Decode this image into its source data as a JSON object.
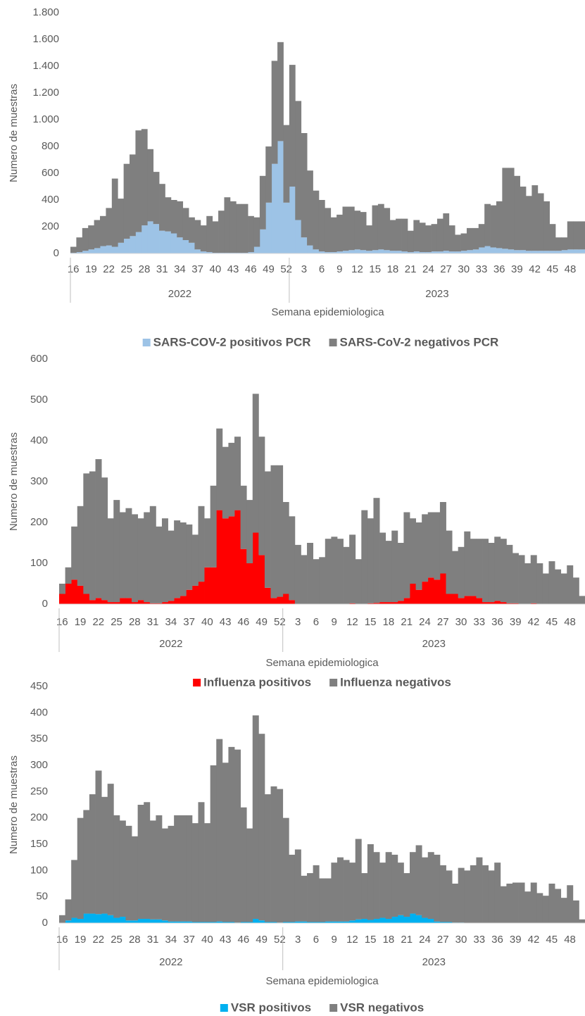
{
  "chart_data": [
    {
      "type": "bar",
      "stacked": true,
      "legend": "bottom",
      "y_label": "Numero de muestras",
      "x_label": "Semana epidemiologica",
      "groups": [
        "2022",
        "2023"
      ],
      "categories": [
        "16",
        null,
        null,
        "19",
        null,
        null,
        "22",
        null,
        null,
        "25",
        null,
        null,
        "28",
        null,
        null,
        "31",
        null,
        null,
        "34",
        null,
        null,
        "37",
        null,
        null,
        "40",
        null,
        null,
        "43",
        null,
        null,
        "46",
        null,
        null,
        "49",
        null,
        null,
        "52",
        null,
        null,
        "3",
        null,
        null,
        "6",
        null,
        null,
        "9",
        null,
        null,
        "12",
        null,
        null,
        "15",
        null,
        null,
        "18",
        null,
        null,
        "21",
        null,
        null,
        "24",
        null,
        null,
        "27",
        null,
        null,
        "30",
        null,
        null,
        "33",
        null,
        null,
        "36",
        null,
        null,
        "39",
        null,
        null,
        "42",
        null,
        null,
        "45",
        null,
        null,
        "48",
        null,
        null
      ],
      "ylim": [
        0,
        1800
      ],
      "yticks": [
        0,
        200,
        400,
        600,
        800,
        {
          "value": 1000,
          "label": "1.000"
        },
        {
          "value": 1200,
          "label": "1.200"
        },
        {
          "value": 1400,
          "label": "1.400"
        },
        {
          "value": 1600,
          "label": "1.600"
        },
        {
          "value": 1800,
          "label": "1.800"
        }
      ],
      "series": [
        {
          "name": "SARS-COV-2 positivos PCR",
          "color": "#9dc3e6",
          "values": [
            5,
            10,
            20,
            30,
            40,
            55,
            60,
            50,
            80,
            110,
            130,
            160,
            210,
            240,
            220,
            170,
            165,
            150,
            120,
            100,
            80,
            30,
            15,
            10,
            5,
            5,
            5,
            5,
            5,
            5,
            10,
            50,
            180,
            380,
            670,
            840,
            380,
            500,
            250,
            120,
            60,
            30,
            15,
            10,
            10,
            15,
            20,
            25,
            30,
            25,
            20,
            25,
            30,
            25,
            20,
            20,
            15,
            10,
            15,
            10,
            10,
            15,
            15,
            20,
            15,
            15,
            20,
            25,
            30,
            45,
            55,
            45,
            40,
            35,
            30,
            25,
            25,
            20,
            20,
            20,
            20,
            20,
            20,
            25,
            30,
            30,
            30
          ]
        },
        {
          "name": "SARS-CoV-2 negativos PCR",
          "color": "#7f7f7f",
          "values": [
            45,
            110,
            170,
            180,
            210,
            225,
            280,
            510,
            330,
            560,
            610,
            760,
            720,
            540,
            390,
            350,
            255,
            250,
            270,
            240,
            190,
            220,
            195,
            270,
            235,
            315,
            415,
            385,
            365,
            365,
            270,
            220,
            400,
            420,
            770,
            740,
            580,
            910,
            890,
            780,
            560,
            440,
            385,
            330,
            260,
            275,
            330,
            325,
            290,
            285,
            190,
            335,
            340,
            315,
            230,
            240,
            245,
            160,
            235,
            220,
            200,
            205,
            245,
            280,
            195,
            125,
            130,
            165,
            160,
            175,
            315,
            315,
            350,
            605,
            610,
            555,
            475,
            410,
            490,
            430,
            370,
            200,
            100,
            95,
            210,
            210,
            210
          ]
        }
      ]
    },
    {
      "type": "bar",
      "stacked": true,
      "legend": "bottom",
      "y_label": "Numero de muestras",
      "x_label": "Semana epidemiologica",
      "groups": [
        "2022",
        "2023"
      ],
      "categories": [
        "16",
        null,
        null,
        "19",
        null,
        null,
        "22",
        null,
        null,
        "25",
        null,
        null,
        "28",
        null,
        null,
        "31",
        null,
        null,
        "34",
        null,
        null,
        "37",
        null,
        null,
        "40",
        null,
        null,
        "43",
        null,
        null,
        "46",
        null,
        null,
        "49",
        null,
        null,
        "52",
        null,
        null,
        "3",
        null,
        null,
        "6",
        null,
        null,
        "9",
        null,
        null,
        "12",
        null,
        null,
        "15",
        null,
        null,
        "18",
        null,
        null,
        "21",
        null,
        null,
        "24",
        null,
        null,
        "27",
        null,
        null,
        "30",
        null,
        null,
        "33",
        null,
        null,
        "36",
        null,
        null,
        "39",
        null,
        null,
        "42",
        null,
        null,
        "45",
        null,
        null,
        "48",
        null,
        null
      ],
      "ylim": [
        0,
        600
      ],
      "yticks": [
        0,
        100,
        200,
        300,
        400,
        500,
        600
      ],
      "series": [
        {
          "name": "Influenza positivos",
          "color": "#ff0000",
          "values": [
            25,
            50,
            60,
            45,
            25,
            10,
            15,
            10,
            5,
            5,
            15,
            15,
            5,
            10,
            5,
            2,
            2,
            5,
            8,
            15,
            20,
            35,
            45,
            55,
            90,
            90,
            230,
            210,
            215,
            230,
            135,
            100,
            175,
            120,
            40,
            15,
            18,
            25,
            10,
            0,
            0,
            0,
            0,
            0,
            0,
            0,
            0,
            0,
            2,
            0,
            0,
            2,
            3,
            5,
            5,
            5,
            8,
            15,
            50,
            35,
            55,
            65,
            60,
            75,
            25,
            25,
            15,
            20,
            20,
            15,
            5,
            5,
            8,
            5,
            2,
            2,
            0,
            0,
            2,
            0,
            0,
            0,
            0,
            0,
            0,
            0,
            0
          ]
        },
        {
          "name": "Influenza negativos",
          "color": "#7f7f7f",
          "values": [
            25,
            40,
            130,
            195,
            295,
            315,
            340,
            300,
            205,
            250,
            210,
            220,
            215,
            200,
            220,
            238,
            188,
            205,
            172,
            190,
            180,
            160,
            125,
            185,
            120,
            200,
            200,
            175,
            180,
            180,
            155,
            155,
            340,
            290,
            285,
            325,
            322,
            225,
            205,
            145,
            120,
            150,
            110,
            115,
            160,
            165,
            160,
            140,
            168,
            110,
            230,
            208,
            257,
            170,
            150,
            175,
            142,
            210,
            160,
            165,
            165,
            160,
            165,
            175,
            155,
            105,
            125,
            158,
            140,
            145,
            155,
            145,
            157,
            155,
            143,
            123,
            120,
            100,
            118,
            100,
            75,
            105,
            85,
            75,
            95,
            65,
            20
          ]
        }
      ]
    },
    {
      "type": "bar",
      "stacked": true,
      "legend": "bottom",
      "y_label": "Numero de muestras",
      "x_label": "Semana epidemiologica",
      "groups": [
        "2022",
        "2023"
      ],
      "categories": [
        "16",
        null,
        null,
        "19",
        null,
        null,
        "22",
        null,
        null,
        "25",
        null,
        null,
        "28",
        null,
        null,
        "31",
        null,
        null,
        "34",
        null,
        null,
        "37",
        null,
        null,
        "40",
        null,
        null,
        "43",
        null,
        null,
        "46",
        null,
        null,
        "49",
        null,
        null,
        "52",
        null,
        null,
        "3",
        null,
        null,
        "6",
        null,
        null,
        "9",
        null,
        null,
        "12",
        null,
        null,
        "15",
        null,
        null,
        "18",
        null,
        null,
        "21",
        null,
        null,
        "24",
        null,
        null,
        "27",
        null,
        null,
        "30",
        null,
        null,
        "33",
        null,
        null,
        "36",
        null,
        null,
        "39",
        null,
        null,
        "42",
        null,
        null,
        "45",
        null,
        null,
        "48",
        null,
        null
      ],
      "ylim": [
        0,
        450
      ],
      "yticks": [
        0,
        50,
        100,
        150,
        200,
        250,
        300,
        350,
        400,
        450
      ],
      "series": [
        {
          "name": "VSR positivos",
          "color": "#00b0f0",
          "values": [
            0,
            5,
            10,
            8,
            18,
            18,
            17,
            18,
            15,
            10,
            12,
            5,
            5,
            8,
            8,
            7,
            7,
            5,
            3,
            3,
            3,
            3,
            2,
            2,
            2,
            2,
            3,
            2,
            2,
            1,
            2,
            2,
            8,
            5,
            2,
            2,
            1,
            2,
            2,
            3,
            3,
            2,
            2,
            2,
            3,
            3,
            3,
            3,
            5,
            7,
            8,
            6,
            8,
            10,
            8,
            12,
            15,
            12,
            18,
            15,
            10,
            8,
            3,
            2,
            2,
            1,
            1,
            0,
            0,
            0,
            0,
            0,
            0,
            0,
            0,
            0,
            0,
            0,
            0,
            0,
            0,
            0,
            0,
            0,
            0,
            0,
            0
          ]
        },
        {
          "name": "VSR negativos",
          "color": "#7f7f7f",
          "values": [
            15,
            40,
            110,
            192,
            197,
            227,
            273,
            222,
            250,
            195,
            183,
            180,
            160,
            217,
            222,
            188,
            198,
            175,
            182,
            202,
            202,
            202,
            188,
            228,
            188,
            298,
            347,
            303,
            333,
            329,
            218,
            178,
            387,
            355,
            243,
            258,
            254,
            198,
            128,
            137,
            87,
            93,
            108,
            83,
            82,
            112,
            122,
            117,
            110,
            153,
            87,
            144,
            127,
            105,
            127,
            118,
            100,
            83,
            117,
            133,
            115,
            127,
            127,
            108,
            98,
            74,
            104,
            100,
            110,
            125,
            110,
            100,
            115,
            70,
            75,
            77,
            77,
            60,
            77,
            57,
            52,
            75,
            65,
            48,
            72,
            43,
            7
          ]
        }
      ]
    }
  ]
}
